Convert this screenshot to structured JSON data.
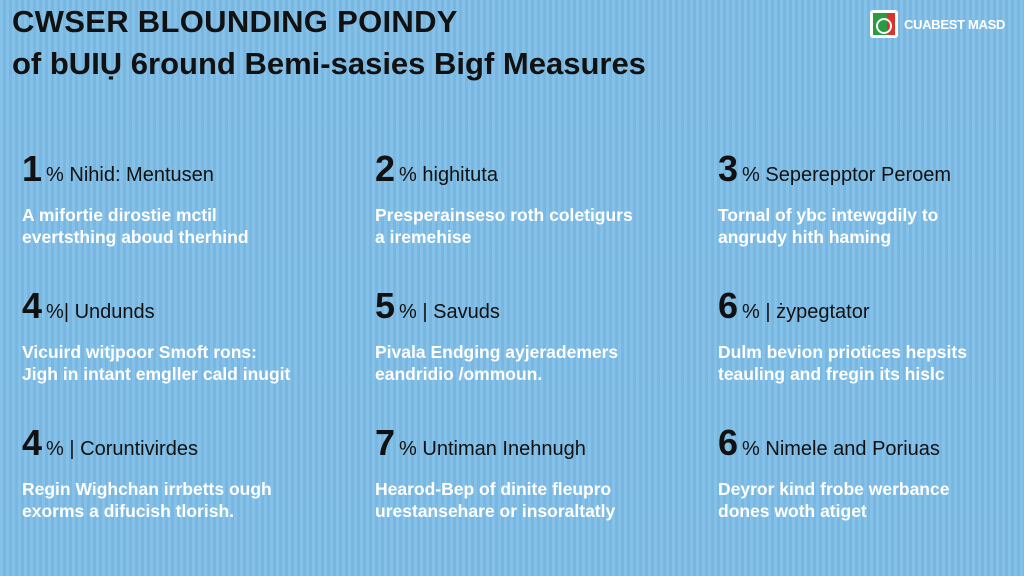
{
  "header": {
    "title_line1": "CWSER BLOUNDING POINDY",
    "title_line2": "of bUIỤ 6round Bemi-sasies Bigf Measures"
  },
  "logo": {
    "icon": "logo-mark-icon",
    "wordmark": "CUABEST MASD",
    "colors": {
      "green": "#2a9a43",
      "red": "#d8342b"
    }
  },
  "items": [
    {
      "number": "1",
      "title": "% Nihid: Mentusen",
      "lines": [
        "A mifortie dirostie mctil",
        "evertsthing aboud therhind"
      ]
    },
    {
      "number": "2",
      "title": "% highituta",
      "lines": [
        "Presperainseso roth coletigurs",
        "a iremehise"
      ]
    },
    {
      "number": "3",
      "title": "% Seperepptor Peroem",
      "lines": [
        "Tornal of ybc intewgdily to",
        "angrudy hith haming"
      ]
    },
    {
      "number": "4",
      "title": "%| Undunds",
      "lines": [
        "Vicuird witjpoor Smoft rons:",
        "Jigh in intant emgller cald inugit"
      ]
    },
    {
      "number": "5",
      "title": "% | Savuds",
      "lines": [
        "Pivala Endging ayjerademers",
        "eandridio /ommoun."
      ]
    },
    {
      "number": "6",
      "title": "% | żypegtator",
      "lines": [
        "Dulm bevion priotices hepsits",
        "teauling and fregin its hislc"
      ]
    },
    {
      "number": "4",
      "title": "% | Coruntivirdes",
      "lines": [
        "Regin Wighchan irrbetts ough",
        "exorms a difucish tlorish."
      ]
    },
    {
      "number": "7",
      "title": "% Untiman Inehnugh",
      "lines": [
        "Hearod-Bep of dinite fleupro",
        "urestansehare or insoraltatly"
      ]
    },
    {
      "number": "6",
      "title": "% Nimele and Poriuas",
      "lines": [
        "Deyror kind frobe werbance",
        "dones woth atiget"
      ]
    }
  ]
}
